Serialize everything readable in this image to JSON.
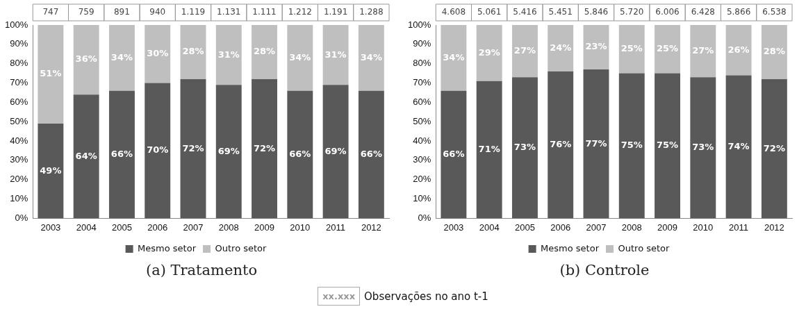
{
  "chart_data": [
    {
      "type": "bar",
      "stacked": true,
      "title": "(a) Tratamento",
      "categories": [
        "2003",
        "2004",
        "2005",
        "2006",
        "2007",
        "2008",
        "2009",
        "2010",
        "2011",
        "2012"
      ],
      "series": [
        {
          "name": "Mesmo setor",
          "color": "#595959",
          "values": [
            49,
            64,
            66,
            70,
            72,
            69,
            72,
            66,
            69,
            66
          ],
          "value_labels": [
            "49%",
            "64%",
            "66%",
            "70%",
            "72%",
            "69%",
            "72%",
            "66%",
            "69%",
            "66%"
          ]
        },
        {
          "name": "Outro setor",
          "color": "#bfbfbf",
          "values": [
            51,
            36,
            34,
            30,
            28,
            31,
            28,
            34,
            31,
            34
          ],
          "value_labels": [
            "51%",
            "36%",
            "34%",
            "30%",
            "28%",
            "31%",
            "28%",
            "34%",
            "31%",
            "34%"
          ]
        }
      ],
      "ylim": [
        0,
        100
      ],
      "yticks": [
        {
          "value": 0,
          "label": "0%"
        },
        {
          "value": 10,
          "label": "10%"
        },
        {
          "value": 20,
          "label": "20%"
        },
        {
          "value": 30,
          "label": "30%"
        },
        {
          "value": 40,
          "label": "40%"
        },
        {
          "value": 50,
          "label": "50%"
        },
        {
          "value": 60,
          "label": "60%"
        },
        {
          "value": 70,
          "label": "70%"
        },
        {
          "value": 80,
          "label": "80%"
        },
        {
          "value": 90,
          "label": "90%"
        },
        {
          "value": 100,
          "label": "100%"
        }
      ],
      "annotations": [
        "747",
        "759",
        "891",
        "940",
        "1.119",
        "1.131",
        "1.111",
        "1.212",
        "1.191",
        "1.288"
      ],
      "grid": false,
      "legend": "bottom"
    },
    {
      "type": "bar",
      "stacked": true,
      "title": "(b) Controle",
      "categories": [
        "2003",
        "2004",
        "2005",
        "2006",
        "2007",
        "2008",
        "2009",
        "2010",
        "2011",
        "2012"
      ],
      "series": [
        {
          "name": "Mesmo setor",
          "color": "#595959",
          "values": [
            66,
            71,
            73,
            76,
            77,
            75,
            75,
            73,
            74,
            72
          ],
          "value_labels": [
            "66%",
            "71%",
            "73%",
            "76%",
            "77%",
            "75%",
            "75%",
            "73%",
            "74%",
            "72%"
          ]
        },
        {
          "name": "Outro setor",
          "color": "#bfbfbf",
          "values": [
            34,
            29,
            27,
            24,
            23,
            25,
            25,
            27,
            26,
            28
          ],
          "value_labels": [
            "34%",
            "29%",
            "27%",
            "24%",
            "23%",
            "25%",
            "25%",
            "27%",
            "26%",
            "28%"
          ]
        }
      ],
      "ylim": [
        0,
        100
      ],
      "yticks": [
        {
          "value": 0,
          "label": "0%"
        },
        {
          "value": 10,
          "label": "10%"
        },
        {
          "value": 20,
          "label": "20%"
        },
        {
          "value": 30,
          "label": "30%"
        },
        {
          "value": 40,
          "label": "40%"
        },
        {
          "value": 50,
          "label": "50%"
        },
        {
          "value": 60,
          "label": "60%"
        },
        {
          "value": 70,
          "label": "70%"
        },
        {
          "value": 80,
          "label": "80%"
        },
        {
          "value": 90,
          "label": "90%"
        },
        {
          "value": 100,
          "label": "100%"
        }
      ],
      "annotations": [
        "4.608",
        "5.061",
        "5.416",
        "5.451",
        "5.846",
        "5.720",
        "6.006",
        "6.428",
        "5.866",
        "6.538",
        "xx.xxx",
        "Observações no ano t-1"
      ],
      "grid": false,
      "legend": "bottom"
    }
  ]
}
